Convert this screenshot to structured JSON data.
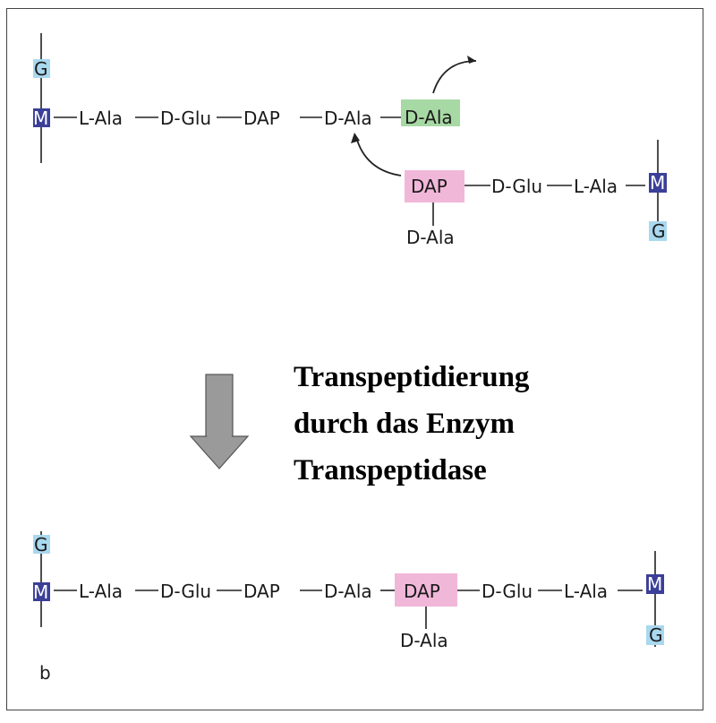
{
  "top_chain": {
    "sugar_top": "G",
    "sugar_mid": "M",
    "residues": [
      "L-Ala",
      "D-Glu",
      "DAP",
      "D-Ala",
      "D-Ala"
    ]
  },
  "side_chain": {
    "dap": "DAP",
    "dap_branch": "D-Ala",
    "residues": [
      "D-Glu",
      "L-Ala"
    ],
    "sugar_mid": "M",
    "sugar_bottom": "G"
  },
  "caption": {
    "line1": "Transpeptidierung",
    "line2": "durch das Enzym",
    "line3": "Transpeptidase"
  },
  "bottom_chain": {
    "sugar_top": "G",
    "sugar_mid": "M",
    "residues": [
      "L-Ala",
      "D-Glu",
      "DAP",
      "D-Ala",
      "DAP",
      "D-Glu",
      "L-Ala"
    ],
    "dap_branch": "D-Ala",
    "right_sugar_mid": "M",
    "right_sugar_bottom": "G"
  },
  "panel_label": "b",
  "colors": {
    "g_box": "#a9d8ef",
    "m_box": "#3b3f98",
    "dala_green": "#a7d9a4",
    "dap_pink": "#f1b7d9",
    "arrow_gray": "#9a9a9a"
  }
}
